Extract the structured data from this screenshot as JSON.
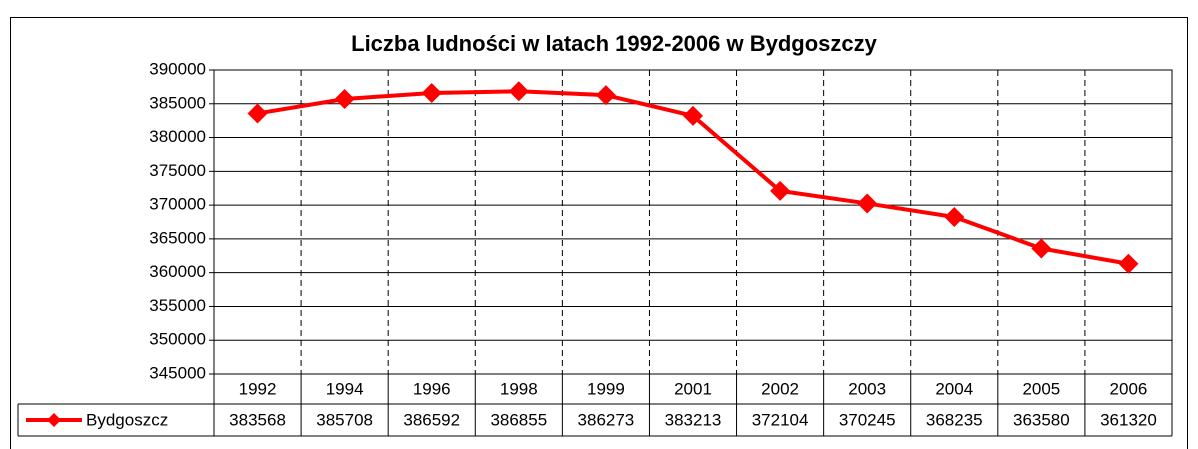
{
  "chart_data": {
    "type": "line",
    "title": "Liczba ludności w latach 1992-2006 w Bydgoszczy",
    "categories": [
      "1992",
      "1994",
      "1996",
      "1998",
      "1999",
      "2001",
      "2002",
      "2003",
      "2004",
      "2005",
      "2006"
    ],
    "series": [
      {
        "name": "Bydgoszcz",
        "color": "#ff0000",
        "values": [
          383568,
          385708,
          386592,
          386855,
          386273,
          383213,
          372104,
          370245,
          368235,
          363580,
          361320
        ]
      }
    ],
    "ylim": [
      345000,
      390000
    ],
    "yticks": [
      345000,
      350000,
      355000,
      360000,
      365000,
      370000,
      375000,
      380000,
      385000,
      390000
    ],
    "grid": true
  }
}
